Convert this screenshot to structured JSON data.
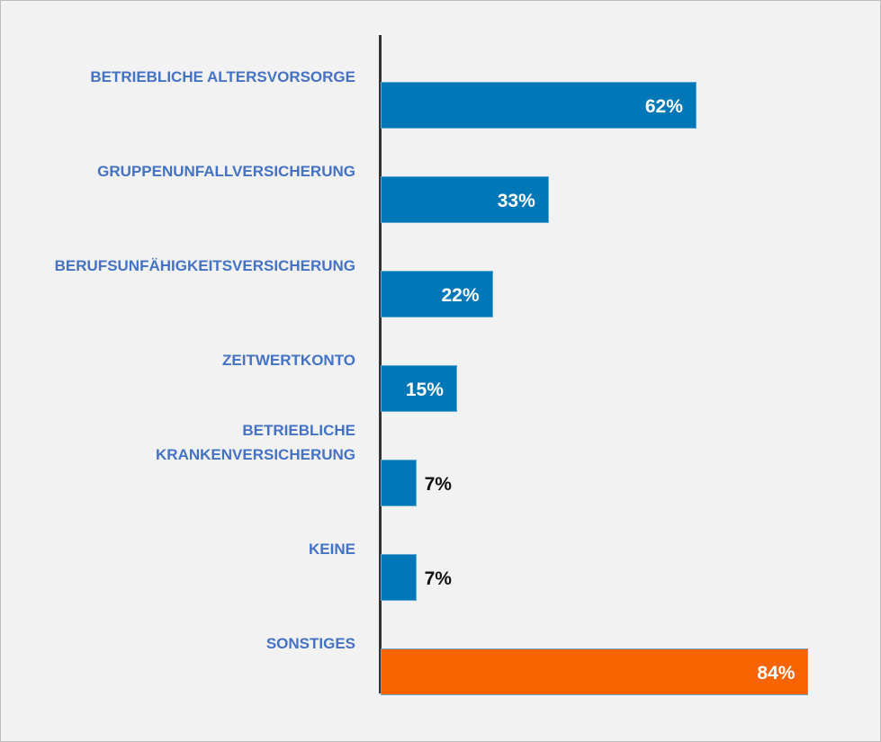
{
  "chart_data": {
    "type": "bar",
    "orientation": "horizontal",
    "categories": [
      "BETRIEBLICHE ALTERSVORSORGE",
      "GRUPPENUNFALLVERSICHERUNG",
      "BERUFSUNFÄHIGKEITSVERSICHERUNG",
      "ZEITWERTKONTO",
      "BETRIEBLICHE\nKRANKENVERSICHERUNG",
      "KEINE",
      "SONSTIGES"
    ],
    "values": [
      62,
      33,
      22,
      15,
      7,
      7,
      84
    ],
    "value_labels": [
      "62%",
      "33%",
      "22%",
      "15%",
      "7%",
      "7%",
      "84%"
    ],
    "colors": [
      "#0077b6",
      "#0077b6",
      "#0077b6",
      "#0077b6",
      "#0077b6",
      "#0077b6",
      "#f96400"
    ]
  }
}
